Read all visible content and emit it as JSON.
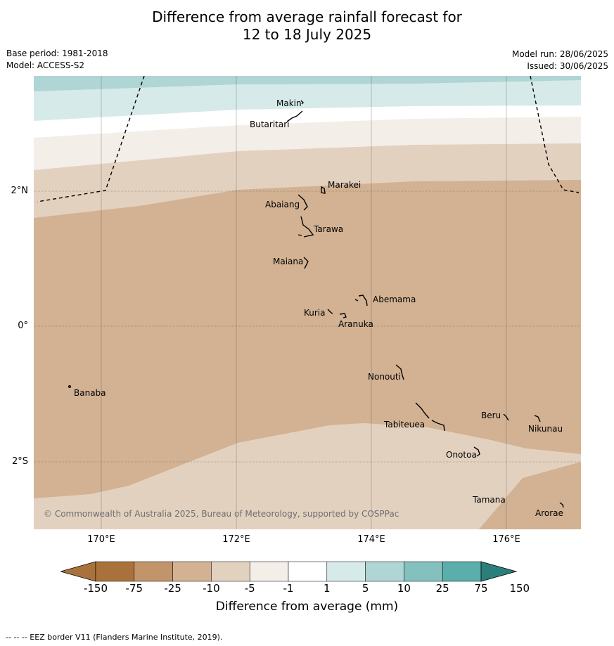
{
  "title_line1": "Difference from average rainfall forecast for",
  "title_line2": "12 to 18 July 2025",
  "base_period": "Base period: 1981-2018",
  "model": "Model: ACCESS-S2",
  "model_run": "Model run: 28/06/2025",
  "issued": "Issued: 30/06/2025",
  "copyright": "© Commonwealth of Australia 2025, Bureau of Meteorology, supported by COSPPac",
  "x_ticks": [
    "170°E",
    "172°E",
    "174°E",
    "176°E"
  ],
  "y_ticks": [
    "2°N",
    "0°",
    "2°S"
  ],
  "places": {
    "makin": "Makin",
    "butaritari": "Butaritari",
    "marakei": "Marakei",
    "abaiang": "Abaiang",
    "tarawa": "Tarawa",
    "maiana": "Maiana",
    "abemama": "Abemama",
    "kuria": "Kuria",
    "aranuka": "Aranuka",
    "banaba": "Banaba",
    "nonouti": "Nonouti",
    "beru": "Beru",
    "tabiteuea": "Tabiteuea",
    "nikunau": "Nikunau",
    "onotoa": "Onotoa",
    "tamana": "Tamana",
    "arorae": "Arorae"
  },
  "colorbar": {
    "labels": [
      "-150",
      "-75",
      "-25",
      "-10",
      "-5",
      "-1",
      "1",
      "5",
      "10",
      "25",
      "75",
      "150"
    ],
    "colors": [
      "#a9723c",
      "#c1946a",
      "#d2b292",
      "#e3d1c0",
      "#f4eee9",
      "#ffffff",
      "#d6eaea",
      "#afd5d4",
      "#84c0bd",
      "#5aaeab",
      "#329994",
      "#2a7f7b"
    ],
    "title": "Difference from average (mm)"
  },
  "colors": {
    "lt_minus75": "#a9723c",
    "minus75_25": "#c1946a",
    "minus25_10": "#d2b292",
    "minus10_5": "#e3d1c0",
    "minus5_1": "#f4eee9",
    "minus1_1": "#ffffff",
    "p1_5": "#d6eaea",
    "p5_10": "#afd5d4"
  },
  "footer": "--  --  -- EEZ border V11 (Flanders Marine Institute, 2019)."
}
